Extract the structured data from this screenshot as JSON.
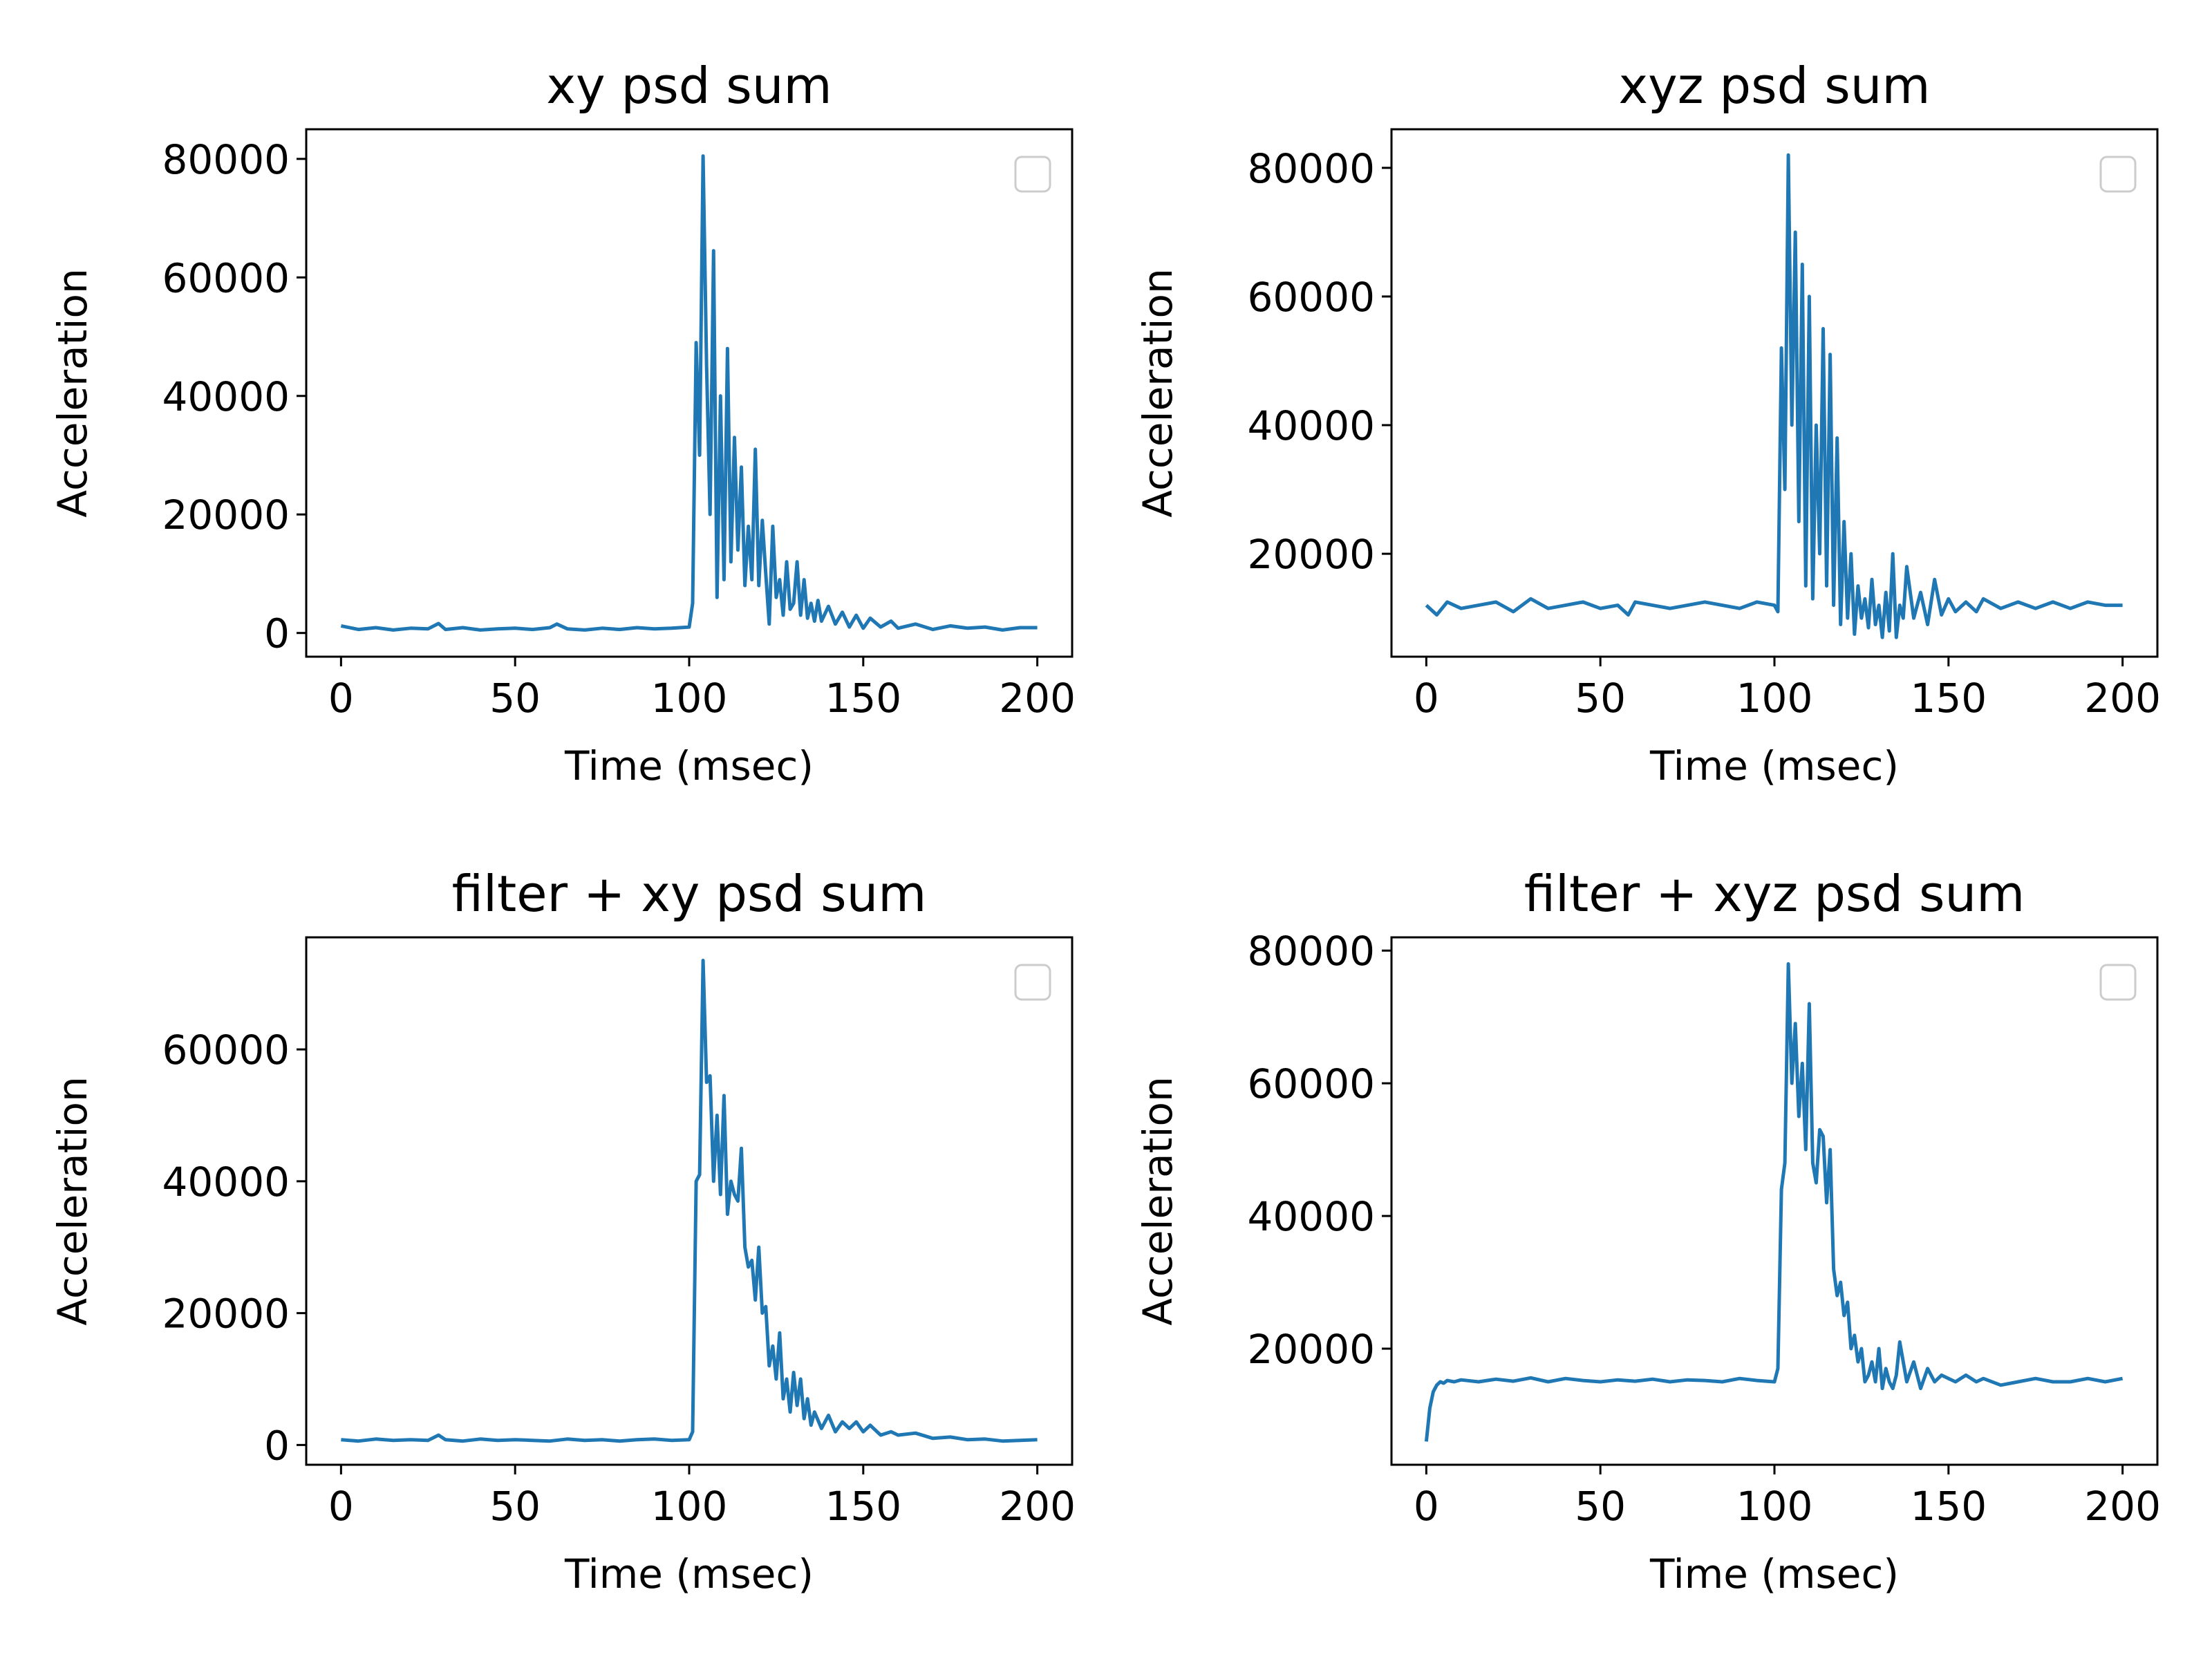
{
  "figure": {
    "background": "#ffffff",
    "series_color": "#1f77b4"
  },
  "chart_data": [
    {
      "type": "line",
      "title": "xy psd sum",
      "xlabel": "Time (msec)",
      "ylabel": "Acceleration",
      "xlim": [
        -10,
        210
      ],
      "ylim": [
        -4000,
        85000
      ],
      "xticks": [
        0,
        50,
        100,
        150,
        200
      ],
      "yticks": [
        0,
        20000,
        40000,
        60000,
        80000
      ],
      "grid": false,
      "legend": {
        "placement": "upper-right",
        "entries": []
      },
      "series": [
        {
          "x": [
            0,
            5,
            10,
            15,
            20,
            25,
            28,
            30,
            35,
            40,
            45,
            50,
            55,
            60,
            62,
            65,
            70,
            75,
            80,
            85,
            90,
            95,
            100,
            101,
            102,
            103,
            104,
            105,
            106,
            107,
            108,
            109,
            110,
            111,
            112,
            113,
            114,
            115,
            116,
            117,
            118,
            119,
            120,
            121,
            122,
            123,
            124,
            125,
            126,
            127,
            128,
            129,
            130,
            131,
            132,
            133,
            134,
            135,
            136,
            137,
            138,
            140,
            142,
            144,
            146,
            148,
            150,
            152,
            155,
            158,
            160,
            165,
            170,
            175,
            180,
            185,
            190,
            195,
            200
          ],
          "y": [
            1200,
            600,
            900,
            500,
            800,
            700,
            1600,
            600,
            900,
            500,
            700,
            800,
            600,
            900,
            1500,
            700,
            500,
            800,
            600,
            900,
            700,
            800,
            1000,
            5000,
            49000,
            30000,
            80500,
            45000,
            20000,
            64500,
            6000,
            40000,
            9000,
            48000,
            12000,
            33000,
            14000,
            28000,
            8000,
            18000,
            9000,
            31000,
            8000,
            19000,
            10000,
            1500,
            18000,
            6000,
            9000,
            3000,
            12000,
            4000,
            5000,
            12000,
            3000,
            9000,
            2500,
            5000,
            2000,
            5500,
            2000,
            4500,
            1500,
            3500,
            1000,
            3000,
            800,
            2500,
            1000,
            2000,
            800,
            1500,
            600,
            1200,
            800,
            1000,
            500,
            900,
            900
          ]
        }
      ]
    },
    {
      "type": "line",
      "title": "xyz psd sum",
      "xlabel": "Time (msec)",
      "ylabel": "Acceleration",
      "xlim": [
        -10,
        210
      ],
      "ylim": [
        4000,
        86000
      ],
      "xticks": [
        0,
        50,
        100,
        150,
        200
      ],
      "yticks": [
        20000,
        40000,
        60000,
        80000
      ],
      "grid": false,
      "legend": {
        "placement": "upper-right",
        "entries": []
      },
      "series": [
        {
          "x": [
            0,
            3,
            6,
            10,
            15,
            20,
            25,
            30,
            35,
            40,
            45,
            50,
            55,
            58,
            60,
            65,
            70,
            75,
            80,
            85,
            90,
            95,
            100,
            101,
            102,
            103,
            104,
            105,
            106,
            107,
            108,
            109,
            110,
            111,
            112,
            113,
            114,
            115,
            116,
            117,
            118,
            119,
            120,
            121,
            122,
            123,
            124,
            125,
            126,
            127,
            128,
            129,
            130,
            131,
            132,
            133,
            134,
            135,
            136,
            137,
            138,
            140,
            142,
            144,
            146,
            148,
            150,
            152,
            155,
            158,
            160,
            165,
            170,
            175,
            180,
            185,
            190,
            195,
            200
          ],
          "y": [
            12000,
            10500,
            12500,
            11500,
            12000,
            12500,
            11000,
            13000,
            11500,
            12000,
            12500,
            11500,
            12000,
            10500,
            12500,
            12000,
            11500,
            12000,
            12500,
            12000,
            11500,
            12500,
            12000,
            11000,
            52000,
            30000,
            82000,
            40000,
            70000,
            25000,
            65000,
            15000,
            60000,
            13000,
            40000,
            20000,
            55000,
            15000,
            51000,
            12000,
            38000,
            9000,
            25000,
            10000,
            20000,
            7500,
            15000,
            10000,
            13000,
            8500,
            16000,
            9000,
            12000,
            7000,
            14000,
            8000,
            20000,
            7000,
            12000,
            10000,
            18000,
            10000,
            14000,
            9000,
            16000,
            10500,
            13000,
            11000,
            12500,
            11000,
            13000,
            11500,
            12500,
            11500,
            12500,
            11500,
            12500,
            12000,
            12000
          ]
        }
      ]
    },
    {
      "type": "line",
      "title": "filter + xy psd sum",
      "xlabel": "Time (msec)",
      "ylabel": "Acceleration",
      "xlim": [
        -10,
        210
      ],
      "ylim": [
        -3000,
        77000
      ],
      "xticks": [
        0,
        50,
        100,
        150,
        200
      ],
      "yticks": [
        0,
        20000,
        40000,
        60000
      ],
      "grid": false,
      "legend": {
        "placement": "upper-right",
        "entries": []
      },
      "series": [
        {
          "x": [
            0,
            5,
            10,
            15,
            20,
            25,
            28,
            30,
            35,
            40,
            45,
            50,
            55,
            60,
            65,
            70,
            75,
            80,
            85,
            90,
            95,
            100,
            101,
            102,
            103,
            104,
            105,
            106,
            107,
            108,
            109,
            110,
            111,
            112,
            113,
            114,
            115,
            116,
            117,
            118,
            119,
            120,
            121,
            122,
            123,
            124,
            125,
            126,
            127,
            128,
            129,
            130,
            131,
            132,
            133,
            134,
            135,
            136,
            138,
            140,
            142,
            144,
            146,
            148,
            150,
            152,
            155,
            158,
            160,
            165,
            170,
            175,
            180,
            185,
            190,
            195,
            200
          ],
          "y": [
            800,
            600,
            900,
            700,
            800,
            700,
            1500,
            800,
            600,
            900,
            700,
            800,
            700,
            600,
            900,
            700,
            800,
            600,
            800,
            900,
            700,
            800,
            2000,
            40000,
            41000,
            73500,
            55000,
            56000,
            40000,
            50000,
            38000,
            53000,
            35000,
            40000,
            38000,
            37000,
            45000,
            30000,
            27000,
            28000,
            22000,
            30000,
            20000,
            21000,
            12000,
            15000,
            10000,
            17000,
            7000,
            10000,
            5000,
            11000,
            6000,
            10000,
            4000,
            7000,
            3000,
            5000,
            2500,
            4500,
            2000,
            3500,
            2500,
            3500,
            2000,
            3000,
            1500,
            2000,
            1500,
            1800,
            1000,
            1200,
            800,
            900,
            600,
            700,
            800
          ]
        }
      ]
    },
    {
      "type": "line",
      "title": "filter + xyz psd sum",
      "xlabel": "Time (msec)",
      "ylabel": "Acceleration",
      "xlim": [
        -10,
        210
      ],
      "ylim": [
        2500,
        82000
      ],
      "xticks": [
        0,
        50,
        100,
        150,
        200
      ],
      "yticks": [
        20000,
        40000,
        60000,
        80000
      ],
      "grid": false,
      "legend": {
        "placement": "upper-right",
        "entries": []
      },
      "series": [
        {
          "x": [
            0,
            1,
            2,
            3,
            4,
            5,
            6,
            8,
            10,
            15,
            20,
            25,
            30,
            35,
            40,
            45,
            50,
            55,
            60,
            65,
            70,
            75,
            80,
            85,
            90,
            95,
            100,
            101,
            102,
            103,
            104,
            105,
            106,
            107,
            108,
            109,
            110,
            111,
            112,
            113,
            114,
            115,
            116,
            117,
            118,
            119,
            120,
            121,
            122,
            123,
            124,
            125,
            126,
            127,
            128,
            129,
            130,
            131,
            132,
            133,
            134,
            135,
            136,
            138,
            140,
            142,
            144,
            146,
            148,
            150,
            152,
            155,
            158,
            160,
            165,
            170,
            175,
            180,
            185,
            190,
            195,
            200
          ],
          "y": [
            6000,
            11000,
            13500,
            14500,
            15000,
            14800,
            15200,
            15000,
            15300,
            15000,
            15400,
            15100,
            15600,
            15000,
            15500,
            15200,
            15000,
            15300,
            15100,
            15400,
            15000,
            15300,
            15200,
            15000,
            15500,
            15200,
            15000,
            17000,
            44000,
            48000,
            78000,
            60000,
            69000,
            55000,
            63000,
            50000,
            72000,
            48000,
            45000,
            53000,
            52000,
            42000,
            50000,
            32000,
            28000,
            30000,
            25000,
            27000,
            20000,
            22000,
            18000,
            20000,
            15000,
            16000,
            18000,
            15000,
            20000,
            14000,
            17000,
            15000,
            14000,
            16000,
            21000,
            15000,
            18000,
            14000,
            17000,
            15000,
            16000,
            15500,
            15000,
            16000,
            15000,
            15500,
            14500,
            15000,
            15500,
            15000,
            15000,
            15500,
            15000,
            15500
          ]
        }
      ]
    }
  ]
}
